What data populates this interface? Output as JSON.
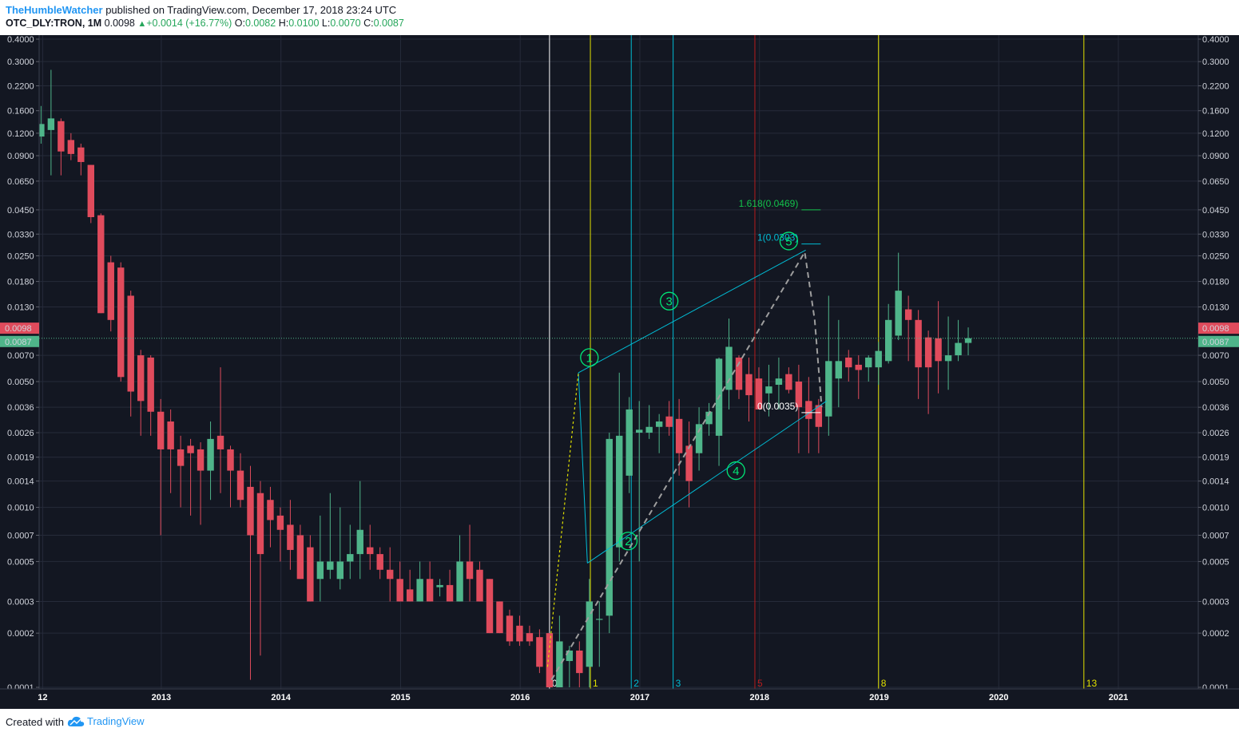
{
  "header": {
    "author": "TheHumbleWatcher",
    "published": " published on TradingView.com, December 17, 2018 23:24 UTC",
    "symbol": "OTC_DLY:TRON, 1M",
    "last": "0.0098",
    "change_arrow": "▲",
    "change": "+0.0014 (+16.77%)",
    "open_label": "O:",
    "open": "0.0082",
    "high_label": "H:",
    "high": "0.0100",
    "low_label": "L:",
    "low": "0.0070",
    "close_label": "C:",
    "close": "0.0087"
  },
  "footer": {
    "created_with": "Created with",
    "brand": "TradingView"
  },
  "colors": {
    "background": "#131722",
    "grid": "#262b3a",
    "up": "#4fb58a",
    "down": "#e04b5c",
    "fib_line": "#00bcd4",
    "time_white": "#ffffff",
    "time_yellow": "#e0e000",
    "time_red": "#b71c1c",
    "wave": "#00e676",
    "price_tag_up": "#e04b5c",
    "price_tag_cur": "#4fb58a"
  },
  "chart_data": {
    "type": "candlestick",
    "scale": "log",
    "interval": "1M",
    "y_ticks": [
      "0.4000",
      "0.3000",
      "0.2200",
      "0.1600",
      "0.1200",
      "0.0900",
      "0.0650",
      "0.0450",
      "0.0330",
      "0.0250",
      "0.0180",
      "0.0130",
      "0.0070",
      "0.0050",
      "0.0036",
      "0.0026",
      "0.0019",
      "0.0014",
      "0.0010",
      "0.0007",
      "0.0005",
      "0.0003",
      "0.0002",
      "0.0001"
    ],
    "y_range": [
      7.65e-05,
      0.41
    ],
    "x_ticks": [
      "12",
      "2013",
      "2014",
      "2015",
      "2016",
      "2017",
      "2018",
      "2019",
      "2020",
      "2021"
    ],
    "price_tags": [
      {
        "value": 0.0098,
        "label": "0.0098",
        "kind": "last"
      },
      {
        "value": 0.0087,
        "label": "0.0087",
        "kind": "close"
      }
    ],
    "candles": [
      {
        "t": "2017-09",
        "o": 0.115,
        "h": 0.17,
        "l": 0.105,
        "c": 0.135
      },
      {
        "t": "2017-10",
        "o": 0.125,
        "h": 0.27,
        "l": 0.07,
        "c": 0.145
      },
      {
        "t": "2017-11",
        "o": 0.14,
        "h": 0.145,
        "l": 0.07,
        "c": 0.095
      },
      {
        "t": "2017-12",
        "o": 0.11,
        "h": 0.12,
        "l": 0.085,
        "c": 0.092
      },
      {
        "t": "2018-01",
        "o": 0.1,
        "h": 0.105,
        "l": 0.07,
        "c": 0.083
      },
      {
        "t": "2018-02",
        "o": 0.08,
        "h": 0.08,
        "l": 0.038,
        "c": 0.041
      },
      {
        "t": "2018-03",
        "o": 0.042,
        "h": 0.043,
        "l": 0.012,
        "c": 0.012
      },
      {
        "t": "2018-04",
        "o": 0.023,
        "h": 0.025,
        "l": 0.0095,
        "c": 0.011
      },
      {
        "t": "2018-05",
        "o": 0.0215,
        "h": 0.023,
        "l": 0.005,
        "c": 0.0053
      },
      {
        "t": "2018-06",
        "o": 0.015,
        "h": 0.016,
        "l": 0.0032,
        "c": 0.0044
      },
      {
        "t": "2018-07",
        "o": 0.007,
        "h": 0.0075,
        "l": 0.0025,
        "c": 0.0039
      },
      {
        "t": "2018-08",
        "o": 0.0068,
        "h": 0.007,
        "l": 0.0025,
        "c": 0.0034
      },
      {
        "t": "2018-09",
        "o": 0.0034,
        "h": 0.004,
        "l": 0.0007,
        "c": 0.0021
      },
      {
        "t": "2018-10",
        "o": 0.003,
        "h": 0.0035,
        "l": 0.0012,
        "c": 0.0021
      },
      {
        "t": "2018-11",
        "o": 0.0021,
        "h": 0.0025,
        "l": 0.001,
        "c": 0.0017
      },
      {
        "t": "2018-12",
        "o": 0.0022,
        "h": 0.0024,
        "l": 0.0009,
        "c": 0.002
      },
      {
        "t": "2019-01",
        "o": 0.0021,
        "h": 0.0023,
        "l": 0.0008,
        "c": 0.0016
      },
      {
        "t": "2019-02",
        "o": 0.0016,
        "h": 0.003,
        "l": 0.0011,
        "c": 0.0024
      },
      {
        "t": "2019-03",
        "o": 0.0025,
        "h": 0.006,
        "l": 0.0012,
        "c": 0.0021
      },
      {
        "t": "2019-04",
        "o": 0.0021,
        "h": 0.0022,
        "l": 0.001,
        "c": 0.0016
      },
      {
        "t": "2019-05",
        "o": 0.0016,
        "h": 0.002,
        "l": 0.001,
        "c": 0.0011
      },
      {
        "t": "2019-06",
        "o": 0.0013,
        "h": 0.0017,
        "l": 0.00011,
        "c": 0.0007
      },
      {
        "t": "2019-07",
        "o": 0.0012,
        "h": 0.0014,
        "l": 0.00015,
        "c": 0.00055
      },
      {
        "t": "2019-08",
        "o": 0.0011,
        "h": 0.0013,
        "l": 0.0006,
        "c": 0.00085
      },
      {
        "t": "2019-09",
        "o": 0.0009,
        "h": 0.001,
        "l": 0.0005,
        "c": 0.00075
      },
      {
        "t": "2019-10",
        "o": 0.0008,
        "h": 0.0011,
        "l": 0.00045,
        "c": 0.00058
      },
      {
        "t": "2019-11",
        "o": 0.0007,
        "h": 0.0008,
        "l": 0.0004,
        "c": 0.0004
      },
      {
        "t": "2019-12",
        "o": 0.0006,
        "h": 0.0007,
        "l": 0.0003,
        "c": 0.0003
      },
      {
        "t": "2020-01",
        "o": 0.0004,
        "h": 0.0009,
        "l": 0.0003,
        "c": 0.0005
      },
      {
        "t": "2020-02",
        "o": 0.00045,
        "h": 0.0012,
        "l": 0.0004,
        "c": 0.0005
      },
      {
        "t": "2020-03",
        "o": 0.0004,
        "h": 0.001,
        "l": 0.00035,
        "c": 0.0005
      },
      {
        "t": "2020-04",
        "o": 0.0005,
        "h": 0.0008,
        "l": 0.0004,
        "c": 0.00055
      },
      {
        "t": "2020-05",
        "o": 0.00055,
        "h": 0.0014,
        "l": 0.0004,
        "c": 0.00075
      },
      {
        "t": "2020-06",
        "o": 0.0006,
        "h": 0.0008,
        "l": 0.00045,
        "c": 0.00055
      },
      {
        "t": "2020-07",
        "o": 0.00055,
        "h": 0.0006,
        "l": 0.0004,
        "c": 0.00045
      },
      {
        "t": "2020-08",
        "o": 0.00045,
        "h": 0.0006,
        "l": 0.0003,
        "c": 0.0004
      },
      {
        "t": "2020-09",
        "o": 0.0004,
        "h": 0.0005,
        "l": 0.0003,
        "c": 0.0003
      },
      {
        "t": "2020-10",
        "o": 0.00035,
        "h": 0.00045,
        "l": 0.0003,
        "c": 0.0003
      },
      {
        "t": "2020-11",
        "o": 0.0003,
        "h": 0.0005,
        "l": 0.0003,
        "c": 0.0004
      },
      {
        "t": "2020-12",
        "o": 0.0004,
        "h": 0.0005,
        "l": 0.0003,
        "c": 0.0003
      },
      {
        "t": "2021-01",
        "o": 0.00036,
        "h": 0.0004,
        "l": 0.00032,
        "c": 0.00037
      },
      {
        "t": "2021-02",
        "o": 0.00037,
        "h": 0.00045,
        "l": 0.0003,
        "c": 0.0003
      },
      {
        "t": "2021-03",
        "o": 0.0003,
        "h": 0.0007,
        "l": 0.0003,
        "c": 0.0005
      },
      {
        "t": "2021-04",
        "o": 0.0005,
        "h": 0.0008,
        "l": 0.0003,
        "c": 0.0004
      },
      {
        "t": "2021-05",
        "o": 0.00045,
        "h": 0.0005,
        "l": 0.0003,
        "c": 0.0003
      },
      {
        "t": "2021-06",
        "o": 0.0004,
        "h": 0.0004,
        "l": 0.0002,
        "c": 0.0002
      },
      {
        "t": "2021-07",
        "o": 0.0003,
        "h": 0.0003,
        "l": 0.0002,
        "c": 0.0002
      },
      {
        "t": "2021-08",
        "o": 0.00025,
        "h": 0.00027,
        "l": 0.00017,
        "c": 0.00018
      },
      {
        "t": "2021-09",
        "o": 0.00022,
        "h": 0.00025,
        "l": 0.00017,
        "c": 0.00018
      },
      {
        "t": "2021-10",
        "o": 0.0002,
        "h": 0.00022,
        "l": 0.00017,
        "c": 0.00018
      },
      {
        "t": "2021-11",
        "o": 0.00019,
        "h": 0.00021,
        "l": 0.00012,
        "c": 0.00013
      },
      {
        "t": "2021-12",
        "o": 0.0002,
        "h": 0.0002,
        "l": 0.0001,
        "c": 0.0001
      },
      {
        "t": "2022-01",
        "o": 0.0001,
        "h": 0.00025,
        "l": 0.0001,
        "c": 0.00018
      },
      {
        "t": "2022-02",
        "o": 0.00014,
        "h": 0.00017,
        "l": 0.0001,
        "c": 0.00016
      },
      {
        "t": "2022-03",
        "o": 0.00016,
        "h": 0.00018,
        "l": 0.0001,
        "c": 0.00012
      },
      {
        "t": "2022-04",
        "o": 0.00013,
        "h": 0.0004,
        "l": 0.0001,
        "c": 0.0003
      },
      {
        "t": "2022-05",
        "o": 0.00024,
        "h": 0.0003,
        "l": 0.00013,
        "c": 0.00024
      },
      {
        "t": "2022-06",
        "o": 0.00025,
        "h": 0.0026,
        "l": 0.0002,
        "c": 0.0024
      },
      {
        "t": "2022-07",
        "o": 0.0006,
        "h": 0.0056,
        "l": 0.0005,
        "c": 0.0025
      },
      {
        "t": "2022-08",
        "o": 0.0015,
        "h": 0.0041,
        "l": 0.0012,
        "c": 0.0035
      },
      {
        "t": "2022-09",
        "o": 0.0026,
        "h": 0.0039,
        "l": 0.0005,
        "c": 0.0027
      },
      {
        "t": "2022-10",
        "o": 0.0026,
        "h": 0.0037,
        "l": 0.0024,
        "c": 0.0028
      },
      {
        "t": "2022-11",
        "o": 0.0028,
        "h": 0.0033,
        "l": 0.002,
        "c": 0.003
      },
      {
        "t": "2022-12",
        "o": 0.0032,
        "h": 0.0039,
        "l": 0.0025,
        "c": 0.0028
      },
      {
        "t": "2023-01",
        "o": 0.0031,
        "h": 0.004,
        "l": 0.0015,
        "c": 0.002
      },
      {
        "t": "2023-02",
        "o": 0.0022,
        "h": 0.003,
        "l": 0.001,
        "c": 0.0014
      },
      {
        "t": "2023-03",
        "o": 0.002,
        "h": 0.0036,
        "l": 0.0016,
        "c": 0.0029
      },
      {
        "t": "2023-04",
        "o": 0.0029,
        "h": 0.0038,
        "l": 0.0025,
        "c": 0.0034
      },
      {
        "t": "2023-05",
        "o": 0.0025,
        "h": 0.0068,
        "l": 0.0017,
        "c": 0.0067
      },
      {
        "t": "2023-06",
        "o": 0.0045,
        "h": 0.0112,
        "l": 0.0035,
        "c": 0.0078
      },
      {
        "t": "2023-07",
        "o": 0.0068,
        "h": 0.007,
        "l": 0.004,
        "c": 0.0045
      },
      {
        "t": "2023-08",
        "o": 0.0055,
        "h": 0.0068,
        "l": 0.003,
        "c": 0.0042
      },
      {
        "t": "2023-09",
        "o": 0.0052,
        "h": 0.006,
        "l": 0.0036,
        "c": 0.0035
      },
      {
        "t": "2023-10",
        "o": 0.0043,
        "h": 0.0062,
        "l": 0.0032,
        "c": 0.0047
      },
      {
        "t": "2023-11",
        "o": 0.0048,
        "h": 0.0068,
        "l": 0.0035,
        "c": 0.0052
      },
      {
        "t": "2023-12",
        "o": 0.0055,
        "h": 0.006,
        "l": 0.0043,
        "c": 0.0045
      },
      {
        "t": "2024-01",
        "o": 0.005,
        "h": 0.0062,
        "l": 0.002,
        "c": 0.0036
      },
      {
        "t": "2024-02",
        "o": 0.0039,
        "h": 0.0053,
        "l": 0.002,
        "c": 0.0031
      },
      {
        "t": "2024-03",
        "o": 0.0037,
        "h": 0.004,
        "l": 0.002,
        "c": 0.0028
      },
      {
        "t": "2024-04",
        "o": 0.0032,
        "h": 0.015,
        "l": 0.0025,
        "c": 0.0065
      },
      {
        "t": "2024-05",
        "o": 0.0052,
        "h": 0.011,
        "l": 0.0036,
        "c": 0.0065
      },
      {
        "t": "2024-06",
        "o": 0.0068,
        "h": 0.0075,
        "l": 0.005,
        "c": 0.006
      },
      {
        "t": "2024-07",
        "o": 0.0062,
        "h": 0.007,
        "l": 0.004,
        "c": 0.0058
      },
      {
        "t": "2024-08",
        "o": 0.006,
        "h": 0.007,
        "l": 0.005,
        "c": 0.0068
      },
      {
        "t": "2024-09",
        "o": 0.006,
        "h": 0.0083,
        "l": 0.0048,
        "c": 0.0074
      },
      {
        "t": "2024-10",
        "o": 0.0065,
        "h": 0.0135,
        "l": 0.0063,
        "c": 0.011
      },
      {
        "t": "2024-11",
        "o": 0.009,
        "h": 0.026,
        "l": 0.0085,
        "c": 0.016
      },
      {
        "t": "2024-12",
        "o": 0.0126,
        "h": 0.015,
        "l": 0.0065,
        "c": 0.011
      },
      {
        "t": "2025-01",
        "o": 0.011,
        "h": 0.0125,
        "l": 0.004,
        "c": 0.006
      },
      {
        "t": "2025-02",
        "o": 0.0088,
        "h": 0.0096,
        "l": 0.0033,
        "c": 0.006
      },
      {
        "t": "2025-03",
        "o": 0.0087,
        "h": 0.014,
        "l": 0.0043,
        "c": 0.0065
      },
      {
        "t": "2025-04",
        "o": 0.0065,
        "h": 0.0115,
        "l": 0.0045,
        "c": 0.007
      },
      {
        "t": "2025-05",
        "o": 0.007,
        "h": 0.011,
        "l": 0.0065,
        "c": 0.0082
      },
      {
        "t": "2025-06",
        "o": 0.0082,
        "h": 0.01,
        "l": 0.007,
        "c": 0.0087
      }
    ],
    "time_lines": [
      {
        "label": "0",
        "x_index": 51.0,
        "color": "time_white"
      },
      {
        "label": "1",
        "x_index": 55.1,
        "color": "time_yellow"
      },
      {
        "label": "2",
        "x_index": 59.2,
        "color": "time_fib"
      },
      {
        "label": "3",
        "x_index": 63.4,
        "color": "time_fib"
      },
      {
        "label": "5",
        "x_index": 71.6,
        "color": "time_red"
      },
      {
        "label": "8",
        "x_index": 84.0,
        "color": "time_yellow"
      },
      {
        "label": "13",
        "x_index": 104.6,
        "color": "time_yellow"
      }
    ],
    "fib_levels": [
      {
        "label": "1.618(0.0469)",
        "value": 0.0469,
        "color": "fib_green"
      },
      {
        "label": "1(0.0303)",
        "value": 0.0303,
        "color": "fib_cyan"
      },
      {
        "label": "0(0.0035)",
        "value": 0.0035,
        "color": "fib_white"
      }
    ],
    "waves": [
      {
        "label": "1",
        "x_index": 55.0,
        "value": 0.0068
      },
      {
        "label": "2",
        "x_index": 58.9,
        "value": 0.00065
      },
      {
        "label": "3",
        "x_index": 63.0,
        "value": 0.014
      },
      {
        "label": "4",
        "x_index": 69.7,
        "value": 0.0016
      },
      {
        "label": "5",
        "x_index": 75.0,
        "value": 0.0302
      }
    ]
  }
}
